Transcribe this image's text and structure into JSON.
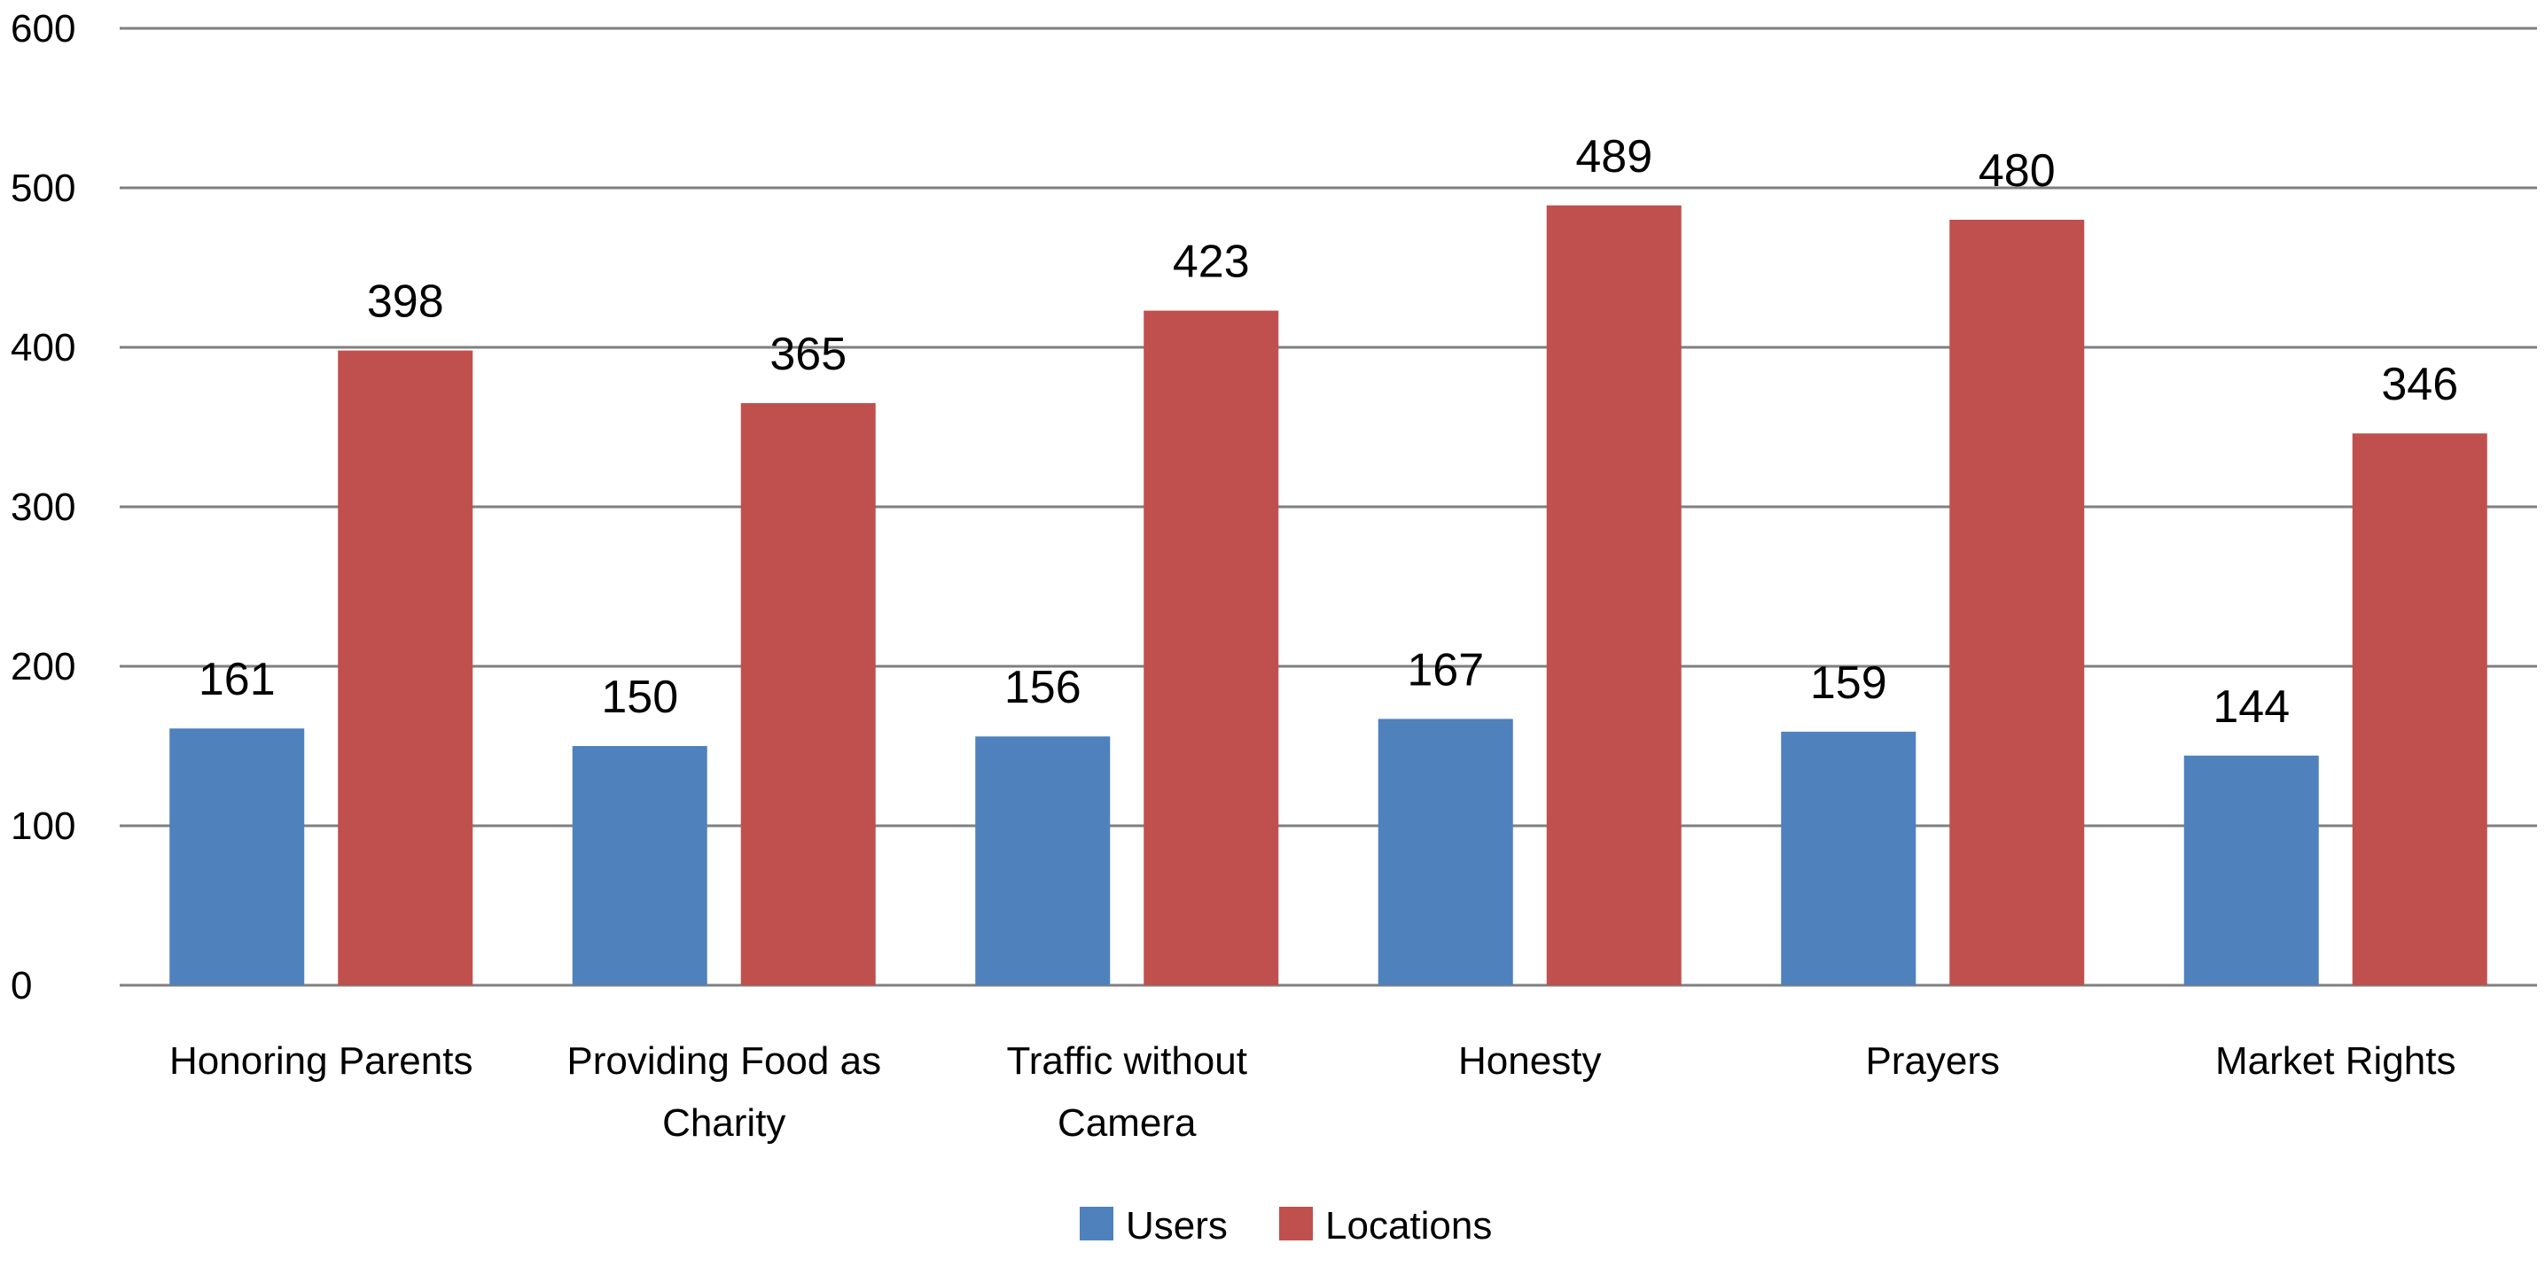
{
  "chart_data": {
    "type": "bar",
    "categories": [
      [
        "Honoring Parents"
      ],
      [
        "Providing Food as",
        "Charity"
      ],
      [
        "Traffic  without",
        "Camera"
      ],
      [
        "Honesty"
      ],
      [
        "Prayers"
      ],
      [
        "Market Rights"
      ]
    ],
    "series": [
      {
        "name": "Users",
        "color": "#4F81BD",
        "values": [
          161,
          150,
          156,
          167,
          159,
          144
        ]
      },
      {
        "name": "Locations",
        "color": "#C0504D",
        "values": [
          398,
          365,
          423,
          489,
          480,
          346
        ]
      }
    ],
    "ylim": [
      0,
      600
    ],
    "yticks": [
      0,
      100,
      200,
      300,
      400,
      500,
      600
    ],
    "grid": true,
    "legend_position": "bottom-center",
    "title": "",
    "xlabel": "",
    "ylabel": ""
  }
}
